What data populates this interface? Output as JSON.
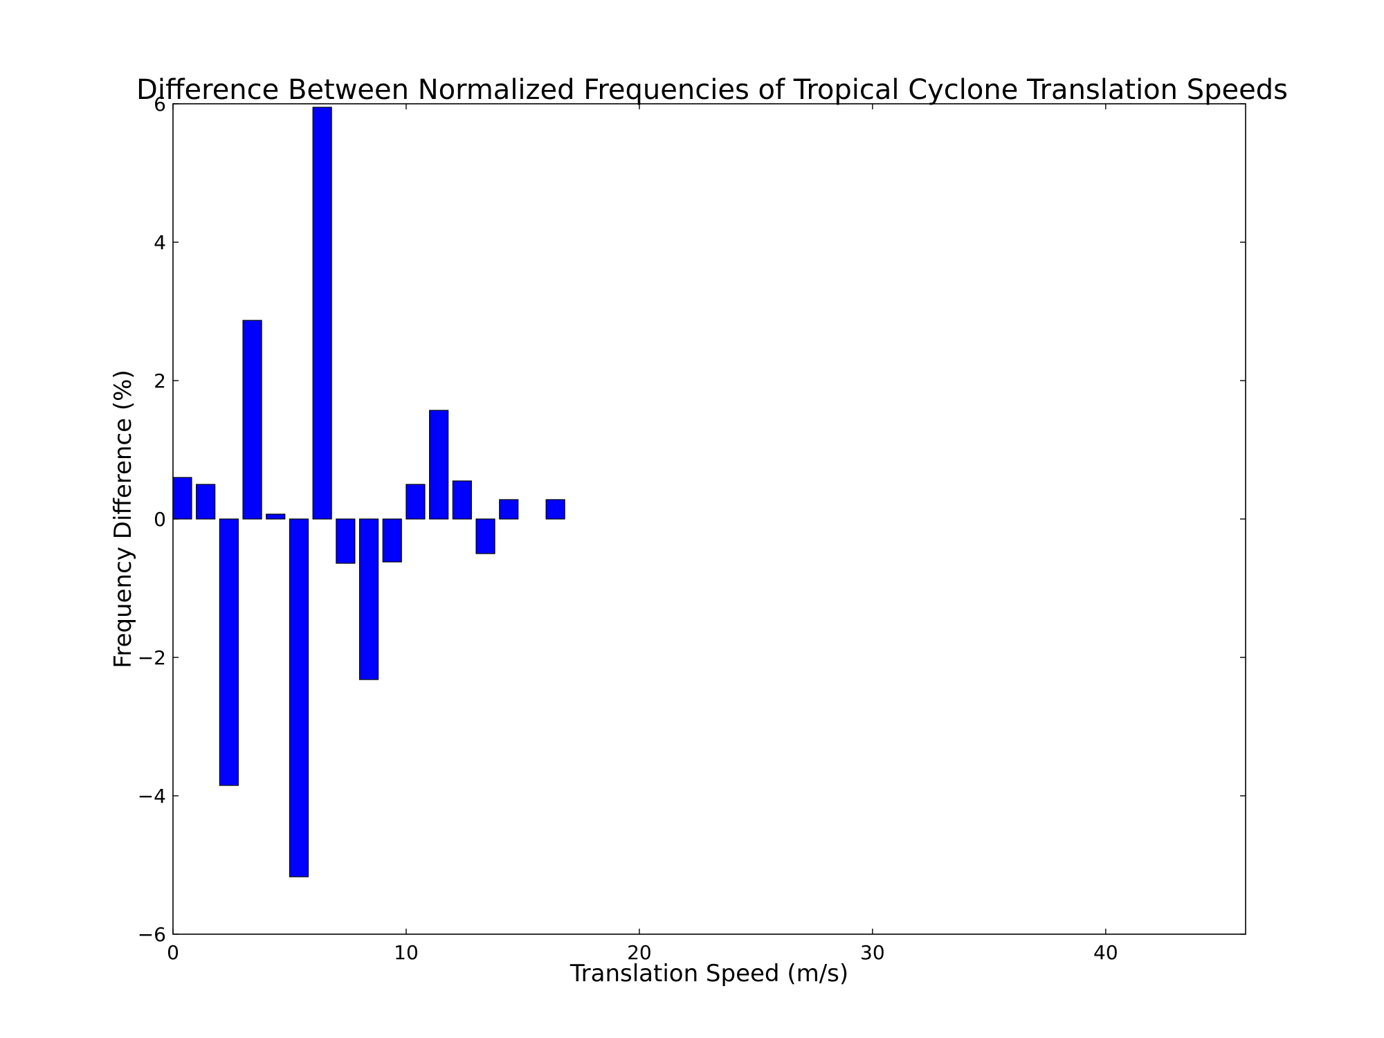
{
  "chart_data": {
    "type": "bar",
    "title": "Difference Between Normalized Frequencies of Tropical Cyclone Translation Speeds",
    "xlabel": "Translation Speed (m/s)",
    "ylabel": "Frequency Difference (%)",
    "xlim": [
      0,
      46
    ],
    "ylim": [
      -6,
      6
    ],
    "xticks": [
      0,
      10,
      20,
      30,
      40
    ],
    "yticks": [
      -6,
      -4,
      -2,
      0,
      2,
      4,
      6
    ],
    "xtick_labels": [
      "0",
      "10",
      "20",
      "30",
      "40"
    ],
    "ytick_labels": [
      "−6",
      "−4",
      "−2",
      "0",
      "2",
      "4",
      "6"
    ],
    "bar_width": 0.8,
    "bar_color": "#0000ff",
    "grid": false,
    "x": [
      0,
      1,
      2,
      3,
      4,
      5,
      6,
      7,
      8,
      9,
      10,
      11,
      12,
      13,
      14,
      15,
      16,
      17,
      18,
      19,
      20,
      21,
      22,
      23,
      24,
      25,
      26,
      27,
      28,
      29,
      30,
      31,
      32,
      33,
      34,
      35,
      36,
      37,
      38,
      39,
      40,
      41,
      42,
      43,
      44
    ],
    "values": [
      0.6,
      0.5,
      -3.85,
      2.87,
      0.07,
      -5.17,
      5.95,
      -0.64,
      -2.32,
      -0.62,
      0.5,
      1.57,
      0.55,
      -0.5,
      0.28,
      0.0,
      0.28,
      0,
      0,
      0,
      0,
      0,
      0,
      0,
      0,
      0,
      0,
      0,
      0,
      0,
      0,
      0,
      0,
      0,
      0,
      0,
      0,
      0,
      0,
      0,
      0,
      0,
      0,
      0,
      0
    ]
  }
}
